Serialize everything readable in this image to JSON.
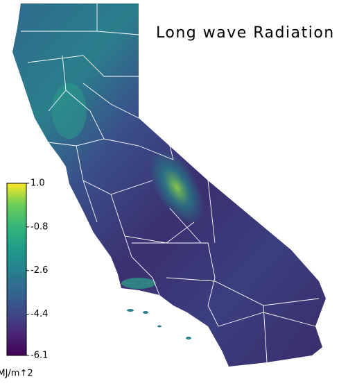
{
  "title": "Long wave Radiation",
  "colorbar": {
    "lim": [
      -6.1,
      1
    ],
    "ticks": [
      {
        "value": 1,
        "label": "1.0"
      },
      -0.8,
      -2.6,
      -4.4,
      -6.1
    ],
    "unit": "MJ/m↑2"
  }
}
